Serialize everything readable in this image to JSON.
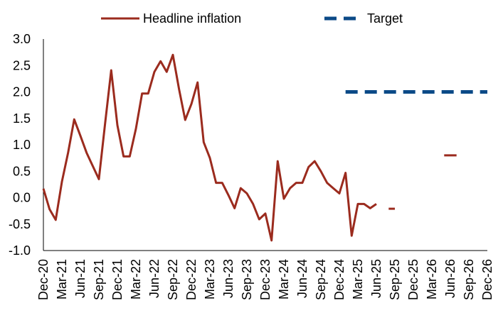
{
  "chart_data": {
    "type": "line",
    "title": "",
    "xlabel": "",
    "ylabel": "",
    "ylim": [
      -1.0,
      3.0
    ],
    "yticks": [
      "3.0",
      "2.5",
      "2.0",
      "1.5",
      "1.0",
      "0.5",
      "0.0",
      "-0.5",
      "-1.0"
    ],
    "x_tick_labels": [
      "Dec-20",
      "Mar-21",
      "Jun-21",
      "Sep-21",
      "Dec-21",
      "Mar-22",
      "Jun-22",
      "Sep-22",
      "Dec-22",
      "Mar-23",
      "Jun-23",
      "Sep-23",
      "Dec-23",
      "Mar-24",
      "Jun-24",
      "Sep-24",
      "Dec-24",
      "Mar-25",
      "Jun-25",
      "Sep-25",
      "Dec-25",
      "Mar-26",
      "Jun-26",
      "Sep-26",
      "Dec-26"
    ],
    "x_start": "Dec-20",
    "x_end": "Dec-26",
    "grid": false,
    "legend_position": "top",
    "series": [
      {
        "name": "Headline inflation",
        "color": "#9B2B1E",
        "style": "solid",
        "x": [
          "Dec-20",
          "Jan-21",
          "Feb-21",
          "Mar-21",
          "Apr-21",
          "May-21",
          "Jun-21",
          "Jul-21",
          "Aug-21",
          "Sep-21",
          "Oct-21",
          "Nov-21",
          "Dec-21",
          "Jan-22",
          "Feb-22",
          "Mar-22",
          "Apr-22",
          "May-22",
          "Jun-22",
          "Jul-22",
          "Aug-22",
          "Sep-22",
          "Oct-22",
          "Nov-22",
          "Dec-22",
          "Jan-23",
          "Feb-23",
          "Mar-23",
          "Apr-23",
          "May-23",
          "Jun-23",
          "Jul-23",
          "Aug-23",
          "Sep-23",
          "Oct-23",
          "Nov-23",
          "Dec-23",
          "Jan-24",
          "Feb-24",
          "Mar-24",
          "Apr-24",
          "May-24",
          "Jun-24",
          "Jul-24",
          "Aug-24",
          "Sep-24",
          "Oct-24",
          "Nov-24",
          "Dec-24",
          "Jan-25",
          "Feb-25",
          "Mar-25",
          "Apr-25",
          "May-25",
          "Jun-25"
        ],
        "values": [
          0.17,
          -0.22,
          -0.42,
          0.3,
          0.85,
          1.48,
          1.17,
          0.85,
          0.6,
          0.35,
          1.4,
          2.41,
          1.37,
          0.78,
          0.78,
          1.3,
          1.97,
          1.97,
          2.38,
          2.58,
          2.38,
          2.7,
          2.05,
          1.47,
          1.77,
          2.18,
          1.05,
          0.75,
          0.28,
          0.28,
          0.05,
          -0.2,
          0.18,
          0.08,
          -0.12,
          -0.41,
          -0.3,
          -0.81,
          0.69,
          -0.02,
          0.18,
          0.28,
          0.28,
          0.58,
          0.69,
          0.5,
          0.28,
          0.18,
          0.08,
          0.47,
          -0.72,
          -0.12,
          -0.12,
          -0.2,
          -0.12
        ]
      },
      {
        "name": "",
        "color": "#9B2B1E",
        "style": "solid",
        "x": [
          "Aug-25",
          "Sep-25"
        ],
        "values": [
          -0.21,
          -0.21
        ]
      },
      {
        "name": "",
        "color": "#9B2B1E",
        "style": "solid",
        "x": [
          "May-26",
          "Jul-26"
        ],
        "values": [
          0.8,
          0.8
        ]
      },
      {
        "name": "Target",
        "color": "#0B4A87",
        "style": "dashed",
        "x": [
          "Jan-25",
          "Dec-26"
        ],
        "values": [
          2.0,
          2.0
        ]
      }
    ]
  }
}
